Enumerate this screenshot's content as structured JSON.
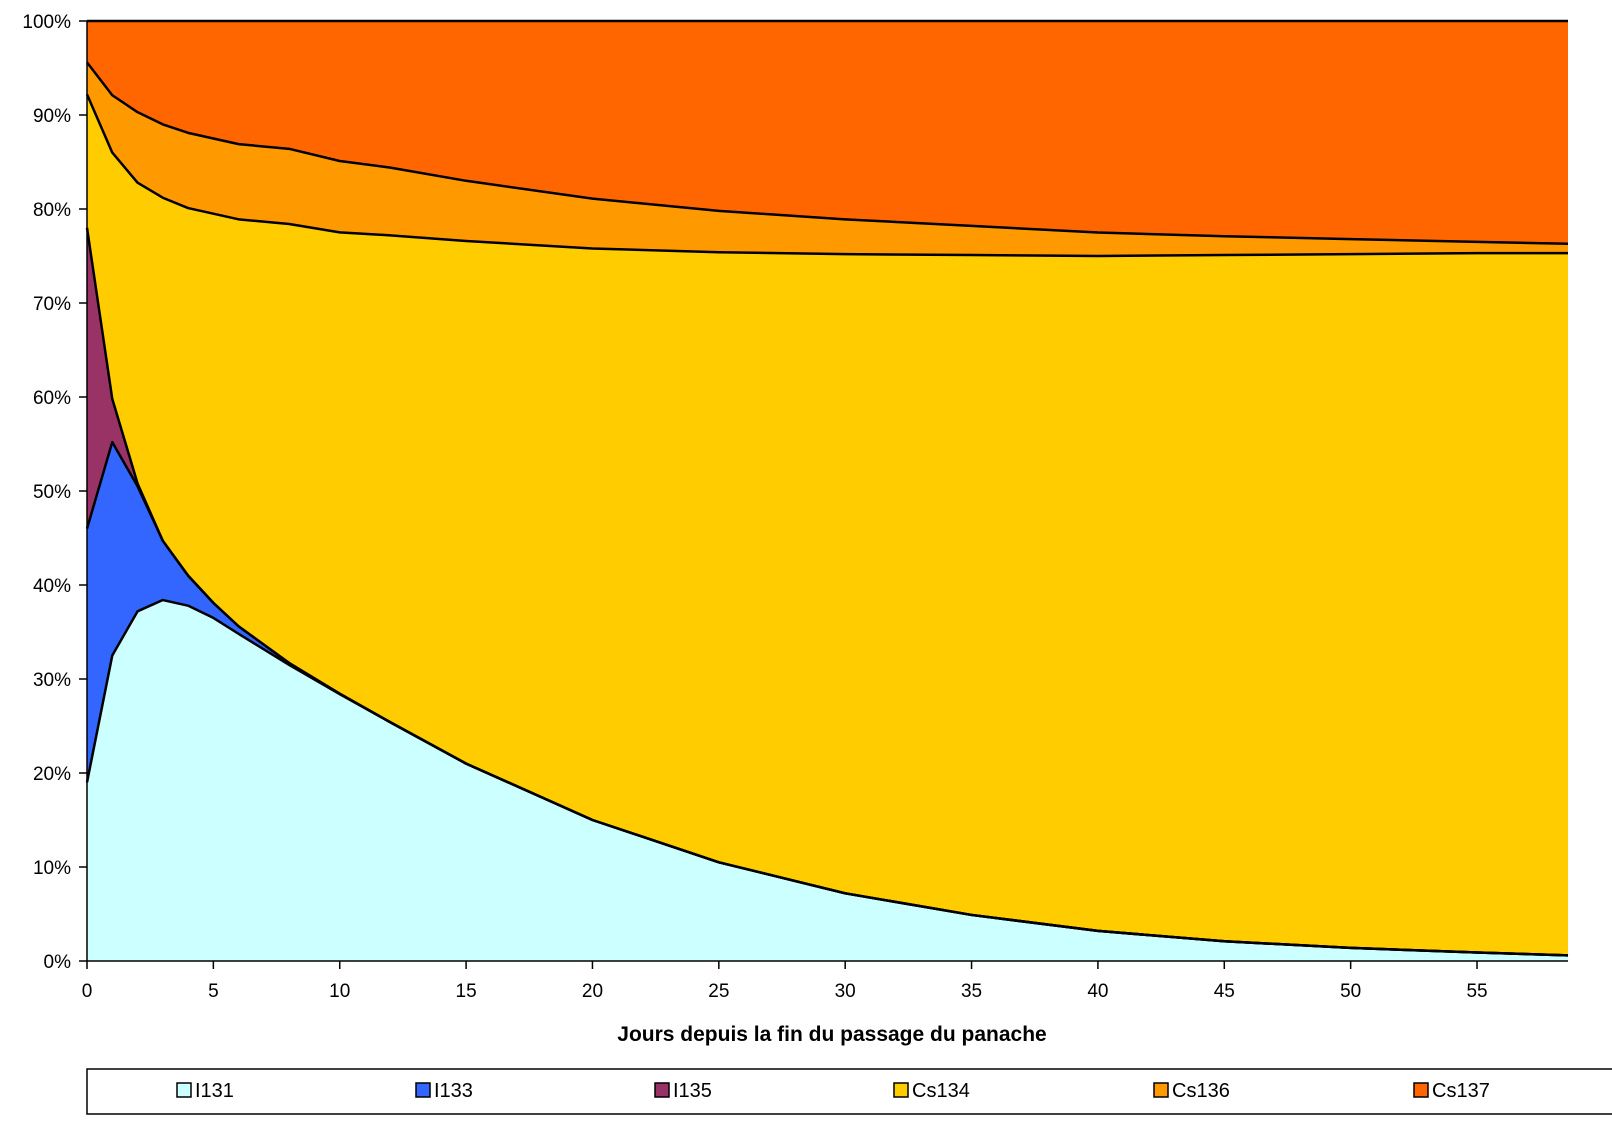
{
  "chart_data": {
    "type": "area",
    "stacked": true,
    "percent": true,
    "title": "",
    "xlabel": "Jours depuis la fin du passage du panache",
    "ylabel": "",
    "xlim": [
      0,
      58.6
    ],
    "ylim": [
      0,
      100
    ],
    "xticks": [
      0,
      5,
      10,
      15,
      20,
      25,
      30,
      35,
      40,
      45,
      50,
      55
    ],
    "yticks": [
      0,
      10,
      20,
      30,
      40,
      50,
      60,
      70,
      80,
      90,
      100
    ],
    "ytick_labels": [
      "0%",
      "10%",
      "20%",
      "30%",
      "40%",
      "50%",
      "60%",
      "70%",
      "80%",
      "90%",
      "100%"
    ],
    "grid": false,
    "legend_position": "bottom",
    "x": [
      0,
      1,
      2,
      3,
      4,
      5,
      6,
      8,
      10,
      12,
      15,
      20,
      25,
      30,
      35,
      40,
      45,
      50,
      55,
      58.6
    ],
    "series": [
      {
        "name": "I131",
        "color": "#CCFFFF",
        "values": [
          19,
          32.5,
          37.2,
          38.4,
          37.8,
          36.5,
          34.8,
          31.5,
          28.4,
          25.4,
          21.0,
          15.0,
          10.5,
          7.2,
          4.9,
          3.2,
          2.1,
          1.4,
          0.9,
          0.6
        ]
      },
      {
        "name": "I133",
        "color": "#3366FF",
        "values": [
          27,
          22.7,
          13.3,
          6.3,
          3.2,
          1.6,
          0.8,
          0.2,
          0.05,
          0,
          0,
          0,
          0,
          0,
          0,
          0,
          0,
          0,
          0,
          0
        ]
      },
      {
        "name": "I135",
        "color": "#993366",
        "values": [
          32,
          4.6,
          0.3,
          0,
          0,
          0,
          0,
          0,
          0,
          0,
          0,
          0,
          0,
          0,
          0,
          0,
          0,
          0,
          0,
          0
        ]
      },
      {
        "name": "Cs134",
        "color": "#FFCC00",
        "values": [
          14.2,
          26.2,
          32.0,
          36.5,
          39.1,
          41.4,
          43.3,
          46.7,
          49.1,
          51.8,
          55.6,
          60.8,
          64.9,
          68.0,
          70.2,
          71.8,
          73.0,
          73.8,
          74.4,
          74.7
        ]
      },
      {
        "name": "Cs136",
        "color": "#FF9900",
        "values": [
          3.4,
          6.1,
          7.5,
          7.8,
          8.0,
          8.0,
          8.0,
          8.0,
          7.6,
          7.2,
          6.4,
          5.3,
          4.4,
          3.7,
          3.1,
          2.5,
          2.0,
          1.6,
          1.2,
          1.0
        ]
      },
      {
        "name": "Cs137",
        "color": "#FF6600",
        "values": [
          4.4,
          7.9,
          9.7,
          11.0,
          11.9,
          12.5,
          13.1,
          13.6,
          14.9,
          15.6,
          17.0,
          18.9,
          20.2,
          21.1,
          21.8,
          22.5,
          22.9,
          23.2,
          23.5,
          23.7
        ]
      }
    ]
  }
}
